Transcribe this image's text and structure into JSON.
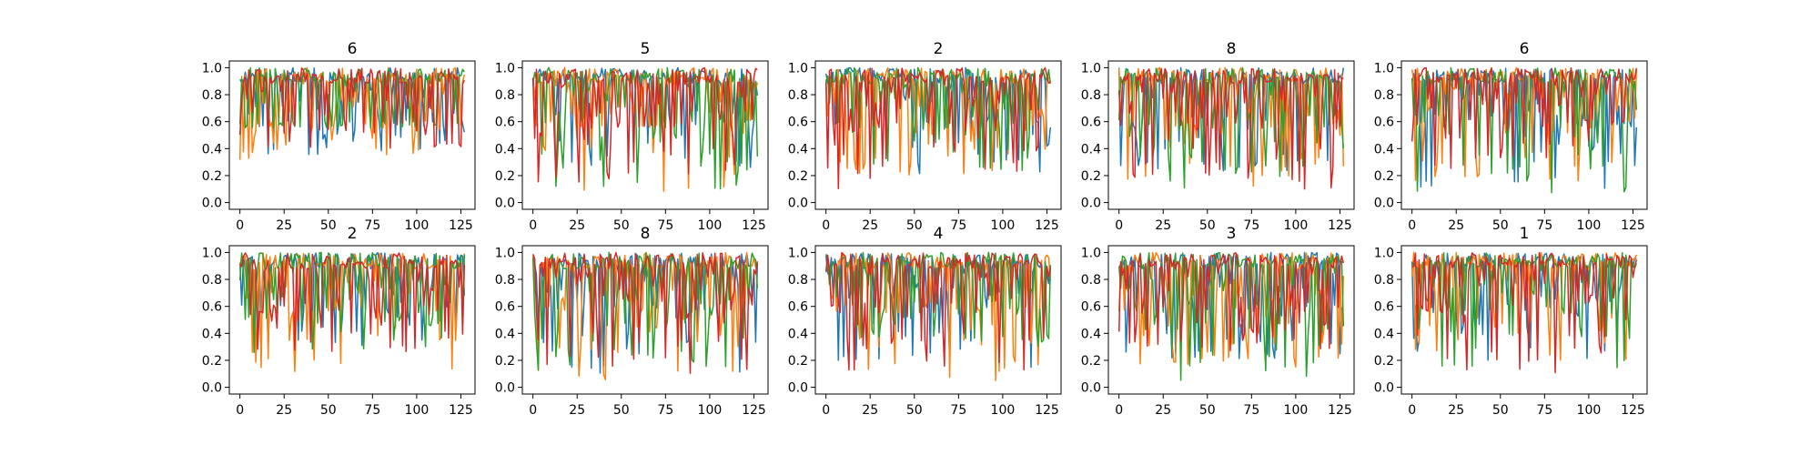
{
  "chart_data": [
    {
      "type": "line",
      "title": "6",
      "xlim": [
        -6,
        133
      ],
      "ylim": [
        -0.05,
        1.05
      ],
      "xticks": [
        0,
        25,
        50,
        75,
        100,
        125
      ],
      "yticks": [
        0.0,
        0.2,
        0.4,
        0.6,
        0.8,
        1.0
      ],
      "seed": 11,
      "series_lows": [
        0.35,
        0.3,
        0.55,
        0.4
      ],
      "series": [
        {
          "color": "#1f77b4"
        },
        {
          "color": "#ff7f0e"
        },
        {
          "color": "#2ca02c"
        },
        {
          "color": "#d62728"
        }
      ]
    },
    {
      "type": "line",
      "title": "5",
      "xlim": [
        -6,
        133
      ],
      "ylim": [
        -0.05,
        1.05
      ],
      "xticks": [
        0,
        25,
        50,
        75,
        100,
        125
      ],
      "yticks": [
        0.0,
        0.2,
        0.4,
        0.6,
        0.8,
        1.0
      ],
      "seed": 23,
      "series_lows": [
        0.25,
        0.05,
        0.1,
        0.15
      ],
      "series": [
        {
          "color": "#1f77b4"
        },
        {
          "color": "#ff7f0e"
        },
        {
          "color": "#2ca02c"
        },
        {
          "color": "#d62728"
        }
      ]
    },
    {
      "type": "line",
      "title": "2",
      "xlim": [
        -6,
        133
      ],
      "ylim": [
        -0.05,
        1.05
      ],
      "xticks": [
        0,
        25,
        50,
        75,
        100,
        125
      ],
      "yticks": [
        0.0,
        0.2,
        0.4,
        0.6,
        0.8,
        1.0
      ],
      "seed": 37,
      "series_lows": [
        0.2,
        0.2,
        0.2,
        0.1
      ],
      "series": [
        {
          "color": "#1f77b4"
        },
        {
          "color": "#ff7f0e"
        },
        {
          "color": "#2ca02c"
        },
        {
          "color": "#d62728"
        }
      ]
    },
    {
      "type": "line",
      "title": "8",
      "xlim": [
        -6,
        133
      ],
      "ylim": [
        -0.05,
        1.05
      ],
      "xticks": [
        0,
        25,
        50,
        75,
        100,
        125
      ],
      "yticks": [
        0.0,
        0.2,
        0.4,
        0.6,
        0.8,
        1.0
      ],
      "seed": 41,
      "series_lows": [
        0.2,
        0.1,
        0.1,
        0.1
      ],
      "series": [
        {
          "color": "#1f77b4"
        },
        {
          "color": "#ff7f0e"
        },
        {
          "color": "#2ca02c"
        },
        {
          "color": "#d62728"
        }
      ]
    },
    {
      "type": "line",
      "title": "6",
      "xlim": [
        -6,
        133
      ],
      "ylim": [
        -0.05,
        1.05
      ],
      "xticks": [
        0,
        25,
        50,
        75,
        100,
        125
      ],
      "yticks": [
        0.0,
        0.2,
        0.4,
        0.6,
        0.8,
        1.0
      ],
      "seed": 53,
      "series_lows": [
        0.1,
        0.15,
        0.05,
        0.25
      ],
      "series": [
        {
          "color": "#1f77b4"
        },
        {
          "color": "#ff7f0e"
        },
        {
          "color": "#2ca02c"
        },
        {
          "color": "#d62728"
        }
      ]
    },
    {
      "type": "line",
      "title": "2",
      "xlim": [
        -6,
        133
      ],
      "ylim": [
        -0.05,
        1.05
      ],
      "xticks": [
        0,
        25,
        50,
        75,
        100,
        125
      ],
      "yticks": [
        0.0,
        0.2,
        0.4,
        0.6,
        0.8,
        1.0
      ],
      "seed": 67,
      "series_lows": [
        0.3,
        0.1,
        0.25,
        0.25
      ],
      "series": [
        {
          "color": "#1f77b4"
        },
        {
          "color": "#ff7f0e"
        },
        {
          "color": "#2ca02c"
        },
        {
          "color": "#d62728"
        }
      ]
    },
    {
      "type": "line",
      "title": "8",
      "xlim": [
        -6,
        133
      ],
      "ylim": [
        -0.05,
        1.05
      ],
      "xticks": [
        0,
        25,
        50,
        75,
        100,
        125
      ],
      "yticks": [
        0.0,
        0.2,
        0.4,
        0.6,
        0.8,
        1.0
      ],
      "seed": 71,
      "series_lows": [
        0.1,
        0.05,
        0.1,
        0.1
      ],
      "series": [
        {
          "color": "#1f77b4"
        },
        {
          "color": "#ff7f0e"
        },
        {
          "color": "#2ca02c"
        },
        {
          "color": "#d62728"
        }
      ]
    },
    {
      "type": "line",
      "title": "4",
      "xlim": [
        -6,
        133
      ],
      "ylim": [
        -0.05,
        1.05
      ],
      "xticks": [
        0,
        25,
        50,
        75,
        100,
        125
      ],
      "yticks": [
        0.0,
        0.2,
        0.4,
        0.6,
        0.8,
        1.0
      ],
      "seed": 83,
      "series_lows": [
        0.1,
        0.0,
        0.3,
        0.1
      ],
      "series": [
        {
          "color": "#1f77b4"
        },
        {
          "color": "#ff7f0e"
        },
        {
          "color": "#2ca02c"
        },
        {
          "color": "#d62728"
        }
      ]
    },
    {
      "type": "line",
      "title": "3",
      "xlim": [
        -6,
        133
      ],
      "ylim": [
        -0.05,
        1.05
      ],
      "xticks": [
        0,
        25,
        50,
        75,
        100,
        125
      ],
      "yticks": [
        0.0,
        0.2,
        0.4,
        0.6,
        0.8,
        1.0
      ],
      "seed": 97,
      "series_lows": [
        0.2,
        0.15,
        0.05,
        0.25
      ],
      "series": [
        {
          "color": "#1f77b4"
        },
        {
          "color": "#ff7f0e"
        },
        {
          "color": "#2ca02c"
        },
        {
          "color": "#d62728"
        }
      ]
    },
    {
      "type": "line",
      "title": "1",
      "xlim": [
        -6,
        133
      ],
      "ylim": [
        -0.05,
        1.05
      ],
      "xticks": [
        0,
        25,
        50,
        75,
        100,
        125
      ],
      "yticks": [
        0.0,
        0.2,
        0.4,
        0.6,
        0.8,
        1.0
      ],
      "seed": 101,
      "series_lows": [
        0.2,
        0.2,
        0.1,
        0.1
      ],
      "series": [
        {
          "color": "#1f77b4"
        },
        {
          "color": "#ff7f0e"
        },
        {
          "color": "#2ca02c"
        },
        {
          "color": "#d62728"
        }
      ]
    }
  ]
}
